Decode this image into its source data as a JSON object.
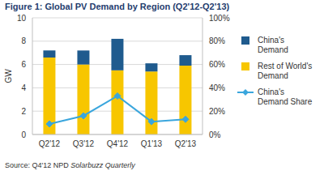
{
  "chart_data": {
    "type": "bar",
    "title": "Figure 1: Global PV Demand by Region (Q2'12-Q2'13)",
    "source": "Source: Q4'12 NPD",
    "source_publication": "Solarbuzz Quarterly",
    "y_label": "GW",
    "categories": [
      "Q2'12",
      "Q3'12",
      "Q4'12",
      "Q1'13",
      "Q2'13"
    ],
    "stacked": true,
    "grid": true,
    "legend": "right",
    "ylim": [
      0,
      10
    ],
    "yticks": [
      0,
      2,
      4,
      6,
      8,
      10
    ],
    "y2lim": [
      0,
      100
    ],
    "y2ticks": [
      {
        "value": 0,
        "label": "0%"
      },
      {
        "value": 20,
        "label": "20%"
      },
      {
        "value": 40,
        "label": "40%"
      },
      {
        "value": 60,
        "label": "60%"
      },
      {
        "value": 80,
        "label": "80%"
      },
      {
        "value": 100,
        "label": "100%"
      }
    ],
    "series": [
      {
        "name": "Rest of World's Demand",
        "type": "bar",
        "color": "#f7c600",
        "values": [
          6.6,
          6.0,
          5.5,
          5.4,
          5.9
        ]
      },
      {
        "name": "China's Demand",
        "type": "bar",
        "color": "#1f5b8e",
        "values": [
          0.6,
          1.2,
          2.7,
          0.7,
          0.9
        ]
      },
      {
        "name": "China's Demand Share",
        "type": "line",
        "axis": "y2",
        "color": "#3aa6dd",
        "marker": "diamond",
        "values": [
          9,
          16,
          33,
          11,
          13
        ]
      }
    ]
  }
}
